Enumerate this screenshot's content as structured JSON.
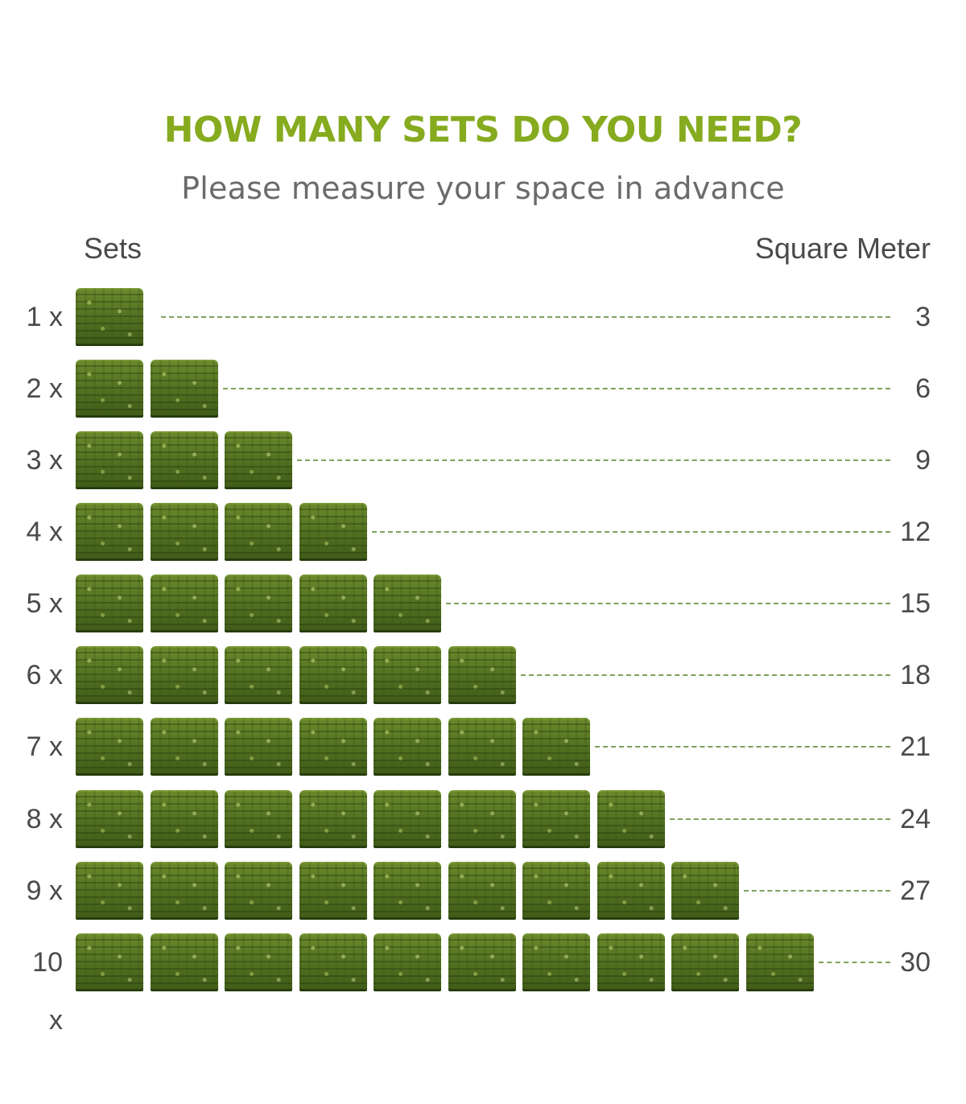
{
  "header": {
    "title": "HOW MANY SETS DO YOU NEED?",
    "subtitle": "Please measure your space in advance"
  },
  "columns": {
    "left": "Sets",
    "right": "Square Meter"
  },
  "rows": [
    {
      "count": "1 x",
      "sets": 1,
      "area": "3"
    },
    {
      "count": "2 x",
      "sets": 2,
      "area": "6"
    },
    {
      "count": "3 x",
      "sets": 3,
      "area": "9"
    },
    {
      "count": "4 x",
      "sets": 4,
      "area": "12"
    },
    {
      "count": "5 x",
      "sets": 5,
      "area": "15"
    },
    {
      "count": "6 x",
      "sets": 6,
      "area": "18"
    },
    {
      "count": "7 x",
      "sets": 7,
      "area": "21"
    },
    {
      "count": "8 x",
      "sets": 8,
      "area": "24"
    },
    {
      "count": "9 x",
      "sets": 9,
      "area": "27"
    },
    {
      "count": "10 x",
      "sets": 10,
      "area": "30"
    }
  ],
  "colors": {
    "title": "#86ab1f",
    "leader": "#7ea25a",
    "tile": "#567423"
  },
  "icons": {
    "tile": "grass-panel-icon"
  }
}
